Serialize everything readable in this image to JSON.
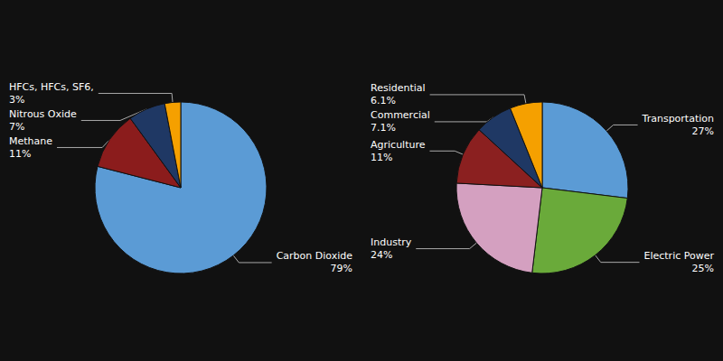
{
  "chart_data": [
    {
      "type": "pie",
      "categories": [
        "Carbon Dioxide",
        "Methane",
        "Nitrous Oxide",
        "HFCs, HFCs, SF6,"
      ],
      "values": [
        79,
        11,
        7,
        3
      ],
      "value_labels": [
        "79%",
        "11%",
        "7%",
        "3%"
      ],
      "colors": [
        "#5b9bd5",
        "#8b1c1c",
        "#1f3864",
        "#f5a000"
      ],
      "data_labels": true
    },
    {
      "type": "pie",
      "categories": [
        "Transportation",
        "Electric Power",
        "Industry",
        "Agriculture",
        "Commercial",
        "Residential"
      ],
      "values": [
        27,
        25,
        24,
        11,
        7.1,
        6.1
      ],
      "value_labels": [
        "27%",
        "25%",
        "24%",
        "11%",
        "7.1%",
        "6.1%"
      ],
      "colors": [
        "#5b9bd5",
        "#6aaa3a",
        "#d4a0c0",
        "#8b2020",
        "#1f3864",
        "#f5a000"
      ],
      "data_labels": true
    }
  ]
}
